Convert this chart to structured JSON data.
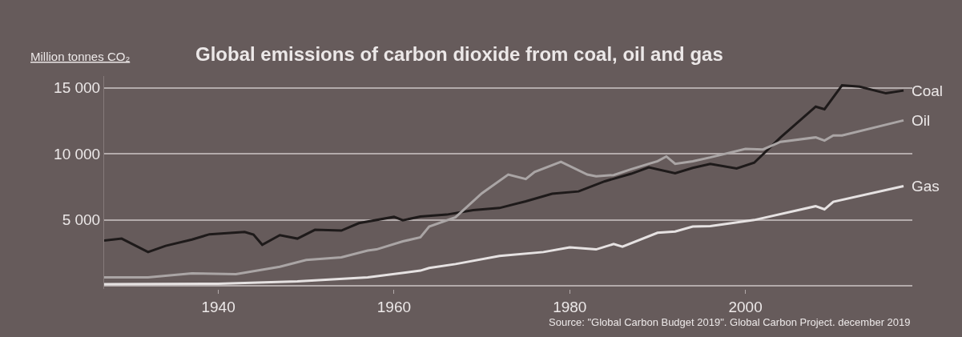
{
  "chart_data": {
    "type": "line",
    "title": "Global emissions of carbon dioxide from coal, oil and gas",
    "ylabel": "Million tonnes CO₂",
    "annotations": [
      "Source: \"Global Carbon Budget 2019\". Global Carbon Project. december 2019"
    ],
    "xlim": [
      1927,
      2019
    ],
    "xticks": [
      1940,
      1960,
      1980,
      2000
    ],
    "ylim": [
      -250,
      15900
    ],
    "yticks": [
      {
        "value": 0,
        "label": null
      },
      {
        "value": 5000,
        "label": "5 000"
      },
      {
        "value": 10000,
        "label": "10 000"
      },
      {
        "value": 15000,
        "label": "15 000"
      }
    ],
    "grid": "y",
    "legend": false,
    "marker": "none",
    "line_style": "solid",
    "series": [
      {
        "name": "Coal",
        "color": "#1e1a1a",
        "x": [
          1927,
          1929,
          1932,
          1934,
          1937,
          1939,
          1943,
          1944,
          1945,
          1947,
          1949,
          1951,
          1954,
          1956,
          1960,
          1961,
          1963,
          1966,
          1969,
          1972,
          1975,
          1978,
          1981,
          1984,
          1987,
          1989,
          1992,
          1994,
          1996,
          1999,
          2001,
          2004,
          2008,
          2009,
          2011,
          2013,
          2016,
          2018
        ],
        "values": [
          3420,
          3570,
          2550,
          3020,
          3500,
          3900,
          4070,
          3870,
          3100,
          3830,
          3570,
          4240,
          4180,
          4740,
          5220,
          4960,
          5240,
          5390,
          5730,
          5890,
          6400,
          6970,
          7150,
          7920,
          8490,
          8970,
          8520,
          8930,
          9240,
          8890,
          9330,
          11250,
          13580,
          13380,
          15200,
          15100,
          14590,
          14800
        ]
      },
      {
        "name": "Oil",
        "color": "#aaa5a5",
        "x": [
          1927,
          1932,
          1937,
          1942,
          1947,
          1950,
          1954,
          1957,
          1958,
          1961,
          1963,
          1964,
          1967,
          1970,
          1973,
          1975,
          1976,
          1979,
          1982,
          1983,
          1985,
          1987,
          1989,
          1990,
          1991,
          1992,
          1994,
          1996,
          2000,
          2002,
          2004,
          2008,
          2009,
          2010,
          2011,
          2018
        ],
        "values": [
          630,
          630,
          930,
          870,
          1440,
          1950,
          2150,
          2660,
          2750,
          3360,
          3670,
          4480,
          5190,
          7010,
          8430,
          8090,
          8630,
          9400,
          8430,
          8290,
          8390,
          8830,
          9240,
          9440,
          9800,
          9240,
          9440,
          9730,
          10380,
          10330,
          10910,
          11250,
          11010,
          11390,
          11390,
          12540
        ]
      },
      {
        "name": "Gas",
        "color": "#e6e2e2",
        "x": [
          1927,
          1940,
          1949,
          1957,
          1963,
          1964,
          1967,
          1972,
          1977,
          1980,
          1983,
          1985,
          1986,
          1990,
          1992,
          1994,
          1996,
          2001,
          2008,
          2009,
          2010,
          2018
        ],
        "values": [
          120,
          150,
          320,
          630,
          1140,
          1340,
          1640,
          2250,
          2550,
          2900,
          2750,
          3160,
          2960,
          4010,
          4110,
          4480,
          4520,
          4980,
          6030,
          5790,
          6360,
          7550
        ]
      }
    ]
  }
}
